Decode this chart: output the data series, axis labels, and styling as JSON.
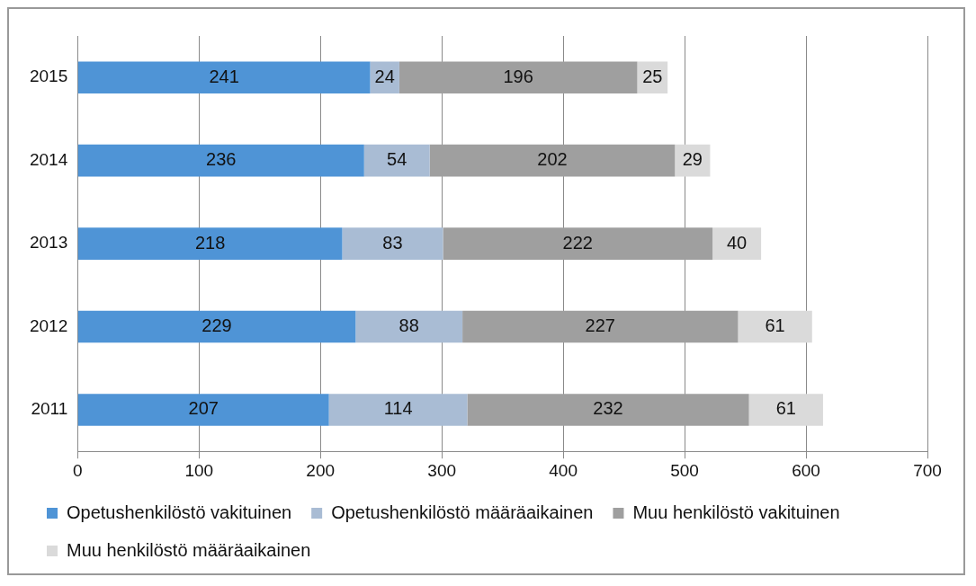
{
  "chart_data": {
    "type": "bar",
    "orientation": "horizontal",
    "stacked": true,
    "categories": [
      "2015",
      "2014",
      "2013",
      "2012",
      "2011"
    ],
    "series": [
      {
        "name": "Opetushenkilöstö vakituinen",
        "color": "#4f94d6",
        "values": [
          241,
          236,
          218,
          229,
          207
        ]
      },
      {
        "name": "Opetushenkilöstö määräaikainen",
        "color": "#a9bcd4",
        "values": [
          24,
          54,
          83,
          88,
          114
        ]
      },
      {
        "name": "Muu henkilöstö vakituinen",
        "color": "#9f9f9f",
        "values": [
          196,
          202,
          222,
          227,
          232
        ]
      },
      {
        "name": "Muu henkilöstö määräaikainen",
        "color": "#dadada",
        "values": [
          25,
          29,
          40,
          61,
          61
        ]
      }
    ],
    "xlim": [
      0,
      700
    ],
    "xticks": [
      0,
      100,
      200,
      300,
      400,
      500,
      600,
      700
    ],
    "grid": "x",
    "legend": "bottom",
    "data_labels": true
  }
}
